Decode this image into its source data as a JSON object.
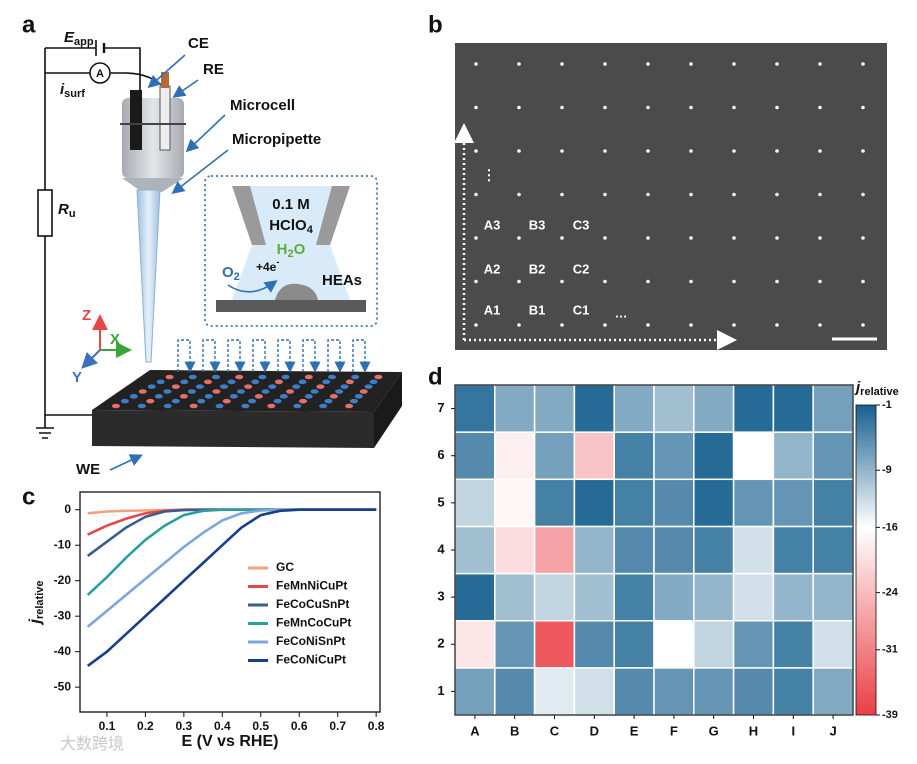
{
  "panel_labels": [
    "a",
    "b",
    "c",
    "d"
  ],
  "diagram": {
    "e_app": {
      "main": "E",
      "sub": "app"
    },
    "ammeter": "A",
    "i_surf": {
      "main": "i",
      "sub": "surf"
    },
    "r_u": {
      "main": "R",
      "sub": "u"
    },
    "ce": "CE",
    "re": "RE",
    "microcell": "Microcell",
    "micropipette": "Micropipette",
    "electrolyte_conc": "0.1 M",
    "electrolyte": {
      "main": "HClO",
      "sub": "4"
    },
    "product": {
      "main": "H",
      "sub": "2",
      "tail": "O"
    },
    "reactant": {
      "main": "O",
      "sub": "2"
    },
    "electrons": {
      "main": "+4e",
      "sup": "-"
    },
    "catalyst": "HEAs",
    "axis_z": "Z",
    "axis_x": "X",
    "axis_y": "Y",
    "we": "WE"
  },
  "micrograph": {
    "labels": [
      "A3",
      "B3",
      "C3",
      "A2",
      "B2",
      "C2",
      "A1",
      "B1",
      "C1",
      "…"
    ],
    "vertical_ellipsis": "⋮"
  },
  "chart_data": [
    {
      "type": "line",
      "xlabel": "E (V vs RHE)",
      "ylabel": {
        "main": "j",
        "sub": "relative"
      },
      "x": [
        0.05,
        0.1,
        0.15,
        0.2,
        0.25,
        0.3,
        0.35,
        0.4,
        0.45,
        0.5,
        0.55,
        0.6,
        0.65,
        0.7,
        0.75,
        0.8
      ],
      "series": [
        {
          "name": "GC",
          "color": "#f4a07e",
          "values": [
            -1,
            -0.5,
            -0.3,
            -0.2,
            -0.1,
            0,
            0,
            0,
            0,
            0,
            0,
            0,
            0,
            0,
            0,
            0
          ]
        },
        {
          "name": "FeMnNiCuPt",
          "color": "#e5474a",
          "values": [
            -7,
            -4.5,
            -2.5,
            -1,
            -0.3,
            0,
            0,
            0,
            0,
            0,
            0,
            0,
            0,
            0,
            0,
            0
          ]
        },
        {
          "name": "FeCoCuSnPt",
          "color": "#3a5d8f",
          "values": [
            -13,
            -9,
            -5,
            -2,
            -0.5,
            -0.1,
            0,
            0,
            0,
            0,
            0,
            0,
            0,
            0,
            0,
            0
          ]
        },
        {
          "name": "FeMnCoCuPt",
          "color": "#2a9fa0",
          "values": [
            -24,
            -19,
            -13.5,
            -8.5,
            -4.5,
            -1.5,
            -0.3,
            0,
            0,
            0,
            0,
            0,
            0,
            0,
            0,
            0
          ]
        },
        {
          "name": "FeCoNiSnPt",
          "color": "#7ba7dd",
          "values": [
            -33,
            -28.5,
            -24,
            -19.5,
            -15,
            -10.5,
            -6.5,
            -3,
            -1,
            -0.2,
            0,
            0,
            0,
            0,
            0,
            0
          ]
        },
        {
          "name": "FeCoNiCuPt",
          "color": "#173f8a",
          "values": [
            -44,
            -40,
            -35,
            -30,
            -25,
            -20,
            -15,
            -10,
            -5,
            -1.5,
            -0.3,
            0,
            0,
            0,
            0,
            0
          ]
        }
      ],
      "xlim": [
        0.03,
        0.81
      ],
      "ylim": [
        -57,
        5
      ],
      "xticks": [
        0.1,
        0.2,
        0.3,
        0.4,
        0.5,
        0.6,
        0.7,
        0.8
      ],
      "yticks": [
        0,
        -10,
        -20,
        -30,
        -40,
        -50
      ],
      "legend": "center"
    },
    {
      "type": "heatmap",
      "x_categories": [
        "A",
        "B",
        "C",
        "D",
        "E",
        "F",
        "G",
        "H",
        "I",
        "J"
      ],
      "y_categories": [
        "1",
        "2",
        "3",
        "4",
        "5",
        "6",
        "7"
      ],
      "values": [
        [
          -7,
          -5,
          -14,
          -13,
          -5,
          -6,
          -6,
          -5,
          -4,
          -8
        ],
        [
          -19,
          -6,
          -36,
          -5,
          -4,
          -16,
          -12,
          -6,
          -4,
          -13
        ],
        [
          -2,
          -10,
          -12,
          -10,
          -4,
          -8,
          -9,
          -13,
          -9,
          -9
        ],
        [
          -10,
          -20,
          -27,
          -9,
          -5,
          -5,
          -4,
          -13,
          -4,
          -4
        ],
        [
          -12,
          -17,
          -4,
          -2,
          -4,
          -5,
          -2,
          -6,
          -6,
          -4
        ],
        [
          -5,
          -18,
          -7,
          -23,
          -4,
          -6,
          -2,
          -16,
          -9,
          -6
        ],
        [
          -3,
          -8,
          -8,
          -2,
          -8,
          -10,
          -8,
          -2,
          -2,
          -7
        ]
      ],
      "zlim": [
        -39,
        -1
      ],
      "zticks": [
        -1,
        -9,
        -16,
        -24,
        -31,
        -39
      ],
      "colorbar_label": {
        "main": "j",
        "sub": "relative"
      },
      "colormap": [
        {
          "value": -39,
          "color": "#ea3e45"
        },
        {
          "value": -16,
          "color": "#ffffff"
        },
        {
          "value": -1,
          "color": "#17608f"
        }
      ]
    }
  ],
  "watermark": "大数跨境"
}
